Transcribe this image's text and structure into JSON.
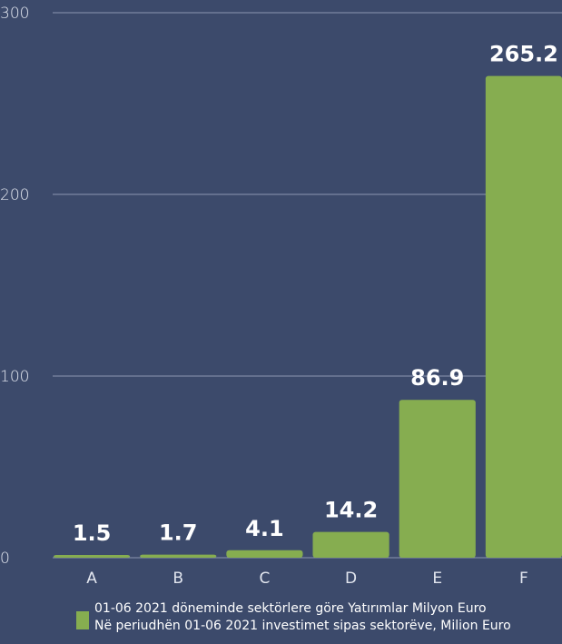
{
  "colors": {
    "background": "#3c4a6b",
    "bar": "#86ad50",
    "grid": "#8b96b2",
    "text": "#e2e6ef"
  },
  "chart_data": {
    "type": "bar",
    "categories": [
      "A",
      "B",
      "C",
      "D",
      "E",
      "F"
    ],
    "values": [
      1.5,
      1.7,
      4.1,
      14.2,
      86.9,
      265.2
    ],
    "data_labels": [
      "1.5",
      "1.7",
      "4.1",
      "14.2",
      "86.9",
      "265.2"
    ],
    "ylim": [
      0,
      300
    ],
    "yticks": [
      0,
      100,
      200,
      300
    ],
    "grid": true,
    "legend_position": "bottom",
    "legend": {
      "line1": "01-06 2021 döneminde sektörlere göre Yatırımlar  Milyon Euro",
      "line2": "Në periudhën 01-06 2021 investimet sipas sektorëve, Milion Euro"
    }
  }
}
